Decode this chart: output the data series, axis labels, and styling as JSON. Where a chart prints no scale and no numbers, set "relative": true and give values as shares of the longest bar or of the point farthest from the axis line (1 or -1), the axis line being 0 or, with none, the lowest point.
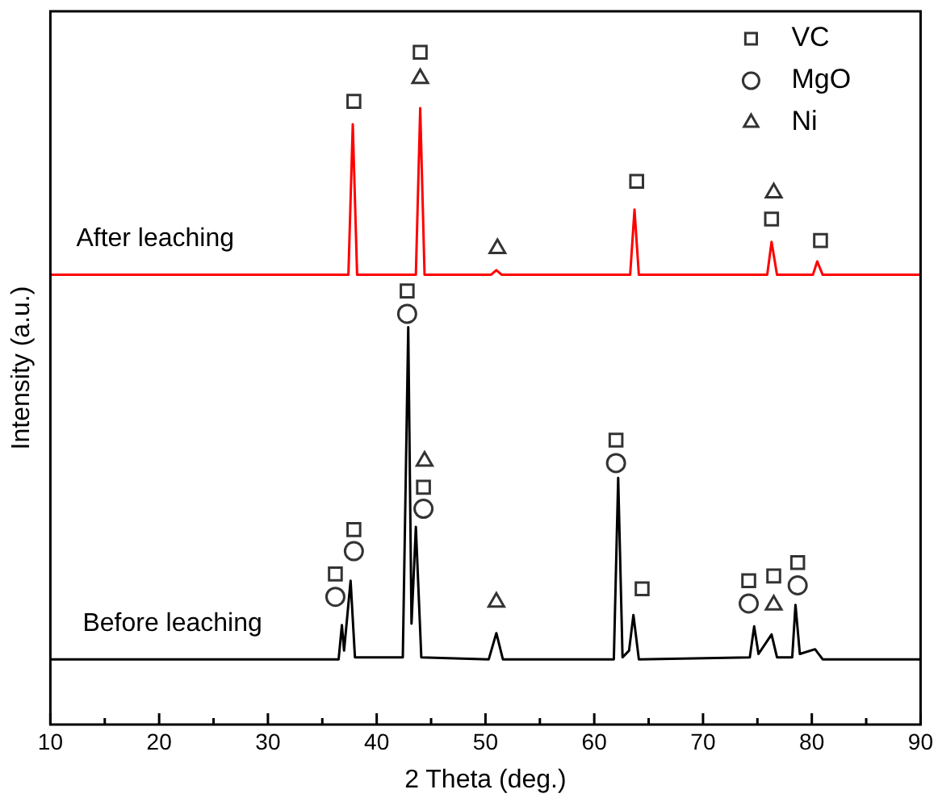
{
  "chart_data": {
    "type": "line",
    "xlabel": "2 Theta (deg.)",
    "ylabel": "Intensity (a.u.)",
    "relative": true,
    "xlim": [
      10,
      90
    ],
    "xticks": [
      10,
      {
        "value": 15,
        "label": null
      },
      20,
      {
        "value": 25,
        "label": null
      },
      30,
      {
        "value": 35,
        "label": null
      },
      40,
      {
        "value": 45,
        "label": null
      },
      50,
      {
        "value": 55,
        "label": null
      },
      60,
      {
        "value": 65,
        "label": null
      },
      70,
      {
        "value": 75,
        "label": null
      },
      80,
      {
        "value": 85,
        "label": null
      },
      90
    ],
    "grid": false,
    "legend": "top right",
    "series": [
      {
        "name": "After leaching",
        "color": "#ff0000",
        "marker": "none",
        "x": [
          10,
          37.4,
          37.8,
          38.2,
          43.6,
          44,
          44.4,
          50.5,
          51,
          51.5,
          63.3,
          63.7,
          64.1,
          75.9,
          76.3,
          76.8,
          80.1,
          80.5,
          81,
          90
        ],
        "values": [
          0.669,
          0.669,
          0.893,
          0.669,
          0.669,
          0.917,
          0.669,
          0.669,
          0.676,
          0.669,
          0.669,
          0.766,
          0.669,
          0.669,
          0.718,
          0.669,
          0.669,
          0.689,
          0.669,
          0.669
        ]
      },
      {
        "name": "Before leaching",
        "color": "#000000",
        "marker": "none",
        "x": [
          10,
          36.5,
          36.8,
          37.0,
          37.6,
          38.0,
          42.4,
          42.9,
          43.2,
          43.6,
          44.1,
          50.3,
          51,
          51.6,
          61.8,
          62.2,
          62.6,
          63.2,
          63.6,
          64.1,
          74.3,
          74.7,
          75.1,
          76.3,
          76.8,
          78.2,
          78.5,
          78.9,
          80.3,
          81,
          90
        ],
        "values": [
          0.097,
          0.097,
          0.148,
          0.11,
          0.214,
          0.1,
          0.1,
          0.591,
          0.15,
          0.294,
          0.1,
          0.097,
          0.136,
          0.097,
          0.097,
          0.367,
          0.1,
          0.11,
          0.163,
          0.097,
          0.1,
          0.146,
          0.105,
          0.134,
          0.1,
          0.1,
          0.178,
          0.105,
          0.112,
          0.097,
          0.097
        ]
      },
      {
        "name": "VC",
        "type": "scatter",
        "color": "#333333",
        "marker": "square",
        "x": [
          37.9,
          44,
          63.9,
          76.3,
          80.8,
          42.8,
          44.3,
          36.2,
          37.9,
          62.0,
          64.4,
          74.2,
          76.5,
          78.7
        ],
        "values": [
          0.927,
          1.0,
          0.808,
          0.752,
          0.72,
          0.645,
          0.353,
          0.224,
          0.29,
          0.423,
          0.202,
          0.214,
          0.221,
          0.241
        ]
      },
      {
        "name": "MgO",
        "type": "scatter",
        "color": "#333333",
        "marker": "circle",
        "x": [
          42.8,
          44.3,
          36.2,
          37.9,
          62.0,
          74.2,
          78.7
        ],
        "values": [
          0.611,
          0.321,
          0.19,
          0.258,
          0.389,
          0.18,
          0.207
        ]
      },
      {
        "name": "Ni",
        "type": "scatter",
        "color": "#333333",
        "marker": "triangle",
        "x": [
          44,
          51.1,
          76.5,
          44.4,
          51.0,
          76.5
        ],
        "values": [
          0.961,
          0.708,
          0.791,
          0.392,
          0.182,
          0.178
        ]
      }
    ]
  }
}
